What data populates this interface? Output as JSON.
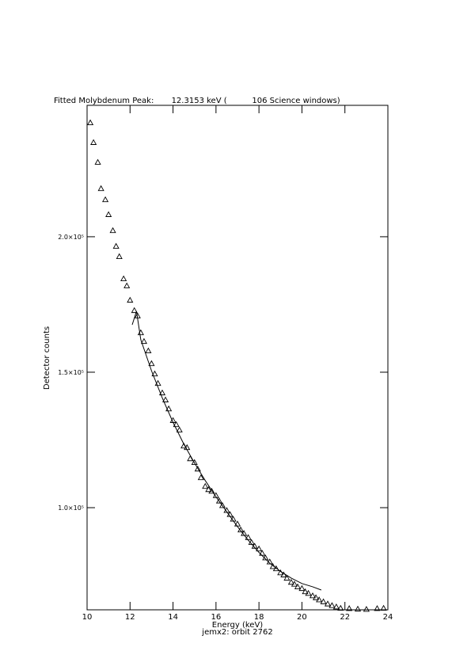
{
  "chart_data": {
    "type": "scatter",
    "title": "Fitted Molybdenum Peak:       12.3153 keV (          106 Science windows)",
    "x_label": "Energy (keV)",
    "subtitle": "jemx2: orbit 2762",
    "y_label": "Detector counts",
    "xlim": [
      10,
      24
    ],
    "xticks": [
      10,
      12,
      14,
      16,
      18,
      20,
      22,
      24
    ],
    "ylim": [
      62300,
      248500
    ],
    "yticks": [
      {
        "value": 100000,
        "label": "1.0×10⁵"
      },
      {
        "value": 150000,
        "label": "1.5×10⁵"
      },
      {
        "value": 200000,
        "label": "2.0×10⁵"
      }
    ],
    "series": [
      {
        "mode": "markers",
        "marker": "triangle",
        "color": "#000000",
        "x": [
          10.15,
          10.3,
          10.5,
          10.65,
          10.85,
          11.0,
          11.2,
          11.35,
          11.5,
          11.7,
          11.85,
          12.0,
          12.2,
          12.35,
          12.5,
          12.65,
          12.85,
          13.0,
          13.15,
          13.3,
          13.5,
          13.65,
          13.8,
          14.0,
          14.15,
          14.3,
          14.5,
          14.65,
          14.8,
          15.0,
          15.15,
          15.3,
          15.5,
          15.65,
          15.8,
          16.0,
          16.15,
          16.3,
          16.5,
          16.65,
          16.8,
          17.0,
          17.15,
          17.3,
          17.5,
          17.65,
          17.8,
          18.0,
          18.15,
          18.3,
          18.5,
          18.65,
          18.8,
          19.0,
          19.15,
          19.3,
          19.5,
          19.65,
          19.8,
          20.0,
          20.15,
          20.3,
          20.5,
          20.65,
          20.8,
          21.0,
          21.2,
          21.4,
          21.6,
          21.8,
          22.2,
          22.6,
          23.0,
          23.5,
          23.8
        ],
        "values": [
          242100,
          234800,
          227500,
          217800,
          213700,
          208200,
          202300,
          196500,
          192700,
          184500,
          181900,
          176600,
          172800,
          170800,
          164600,
          161400,
          157900,
          153200,
          149400,
          145900,
          142400,
          139800,
          136500,
          132200,
          130700,
          128700,
          122800,
          122200,
          118100,
          116700,
          114300,
          111100,
          107900,
          106700,
          106100,
          104500,
          102500,
          100800,
          99000,
          97500,
          95800,
          94000,
          91800,
          90500,
          89000,
          87200,
          85800,
          84800,
          83200,
          81500,
          80000,
          78300,
          77500,
          76000,
          75200,
          74000,
          72500,
          71800,
          70800,
          70200,
          69000,
          68400,
          67500,
          66800,
          66000,
          65300,
          64500,
          63900,
          63400,
          62900,
          62800,
          62600,
          62500,
          62800,
          62900
        ]
      },
      {
        "mode": "line",
        "color": "#000000",
        "x": [
          12.1,
          12.3,
          12.5,
          13,
          13.5,
          14,
          14.5,
          15,
          15.5,
          16,
          16.5,
          17,
          17.5,
          18,
          18.5,
          19,
          19.5,
          20,
          20.5,
          20.9
        ],
        "values": [
          167500,
          172500,
          162000,
          150500,
          140500,
          131500,
          123500,
          116500,
          110000,
          104000,
          98500,
          93000,
          88000,
          83500,
          79500,
          76500,
          74000,
          72000,
          70800,
          69600
        ]
      }
    ]
  }
}
